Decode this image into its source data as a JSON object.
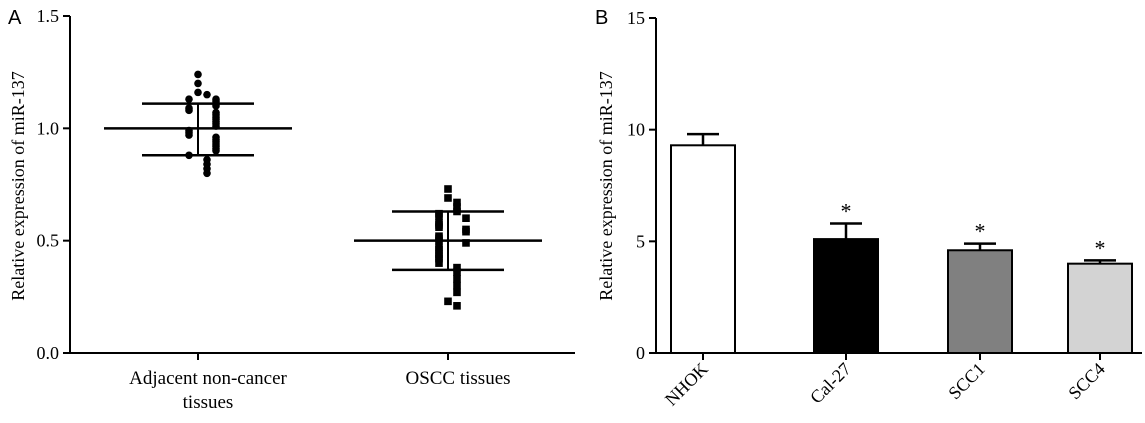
{
  "chart_data": [
    {
      "panel": "A",
      "type": "scatter",
      "ylabel": "Relative expression of miR-137",
      "ylim": [
        0,
        1.5
      ],
      "yticks": [
        "0.0",
        "0.5",
        "1.0",
        "1.5"
      ],
      "categories": [
        {
          "line1": "Adjacent non-cancer",
          "line2": "tissues"
        },
        {
          "line1": "OSCC tissues",
          "line2": ""
        }
      ],
      "groups": [
        {
          "marker": "circle",
          "mean": 1.0,
          "sd_low": 0.88,
          "sd_high": 1.11,
          "points": [
            1.24,
            1.2,
            1.16,
            1.15,
            1.13,
            1.13,
            1.12,
            1.1,
            1.09,
            1.08,
            1.07,
            1.06,
            1.05,
            1.04,
            1.03,
            1.02,
            1.01,
            0.99,
            0.98,
            0.97,
            0.96,
            0.95,
            0.94,
            0.93,
            0.92,
            0.91,
            0.9,
            0.88,
            0.86,
            0.84,
            0.82,
            0.8
          ]
        },
        {
          "marker": "square",
          "mean": 0.5,
          "sd_low": 0.37,
          "sd_high": 0.63,
          "points": [
            0.73,
            0.69,
            0.67,
            0.65,
            0.63,
            0.62,
            0.61,
            0.6,
            0.58,
            0.57,
            0.56,
            0.55,
            0.54,
            0.52,
            0.51,
            0.5,
            0.49,
            0.47,
            0.46,
            0.44,
            0.43,
            0.42,
            0.4,
            0.38,
            0.36,
            0.33,
            0.3,
            0.27,
            0.23,
            0.21
          ]
        }
      ]
    },
    {
      "panel": "B",
      "type": "bar",
      "ylabel": "Relative expression of miR-137",
      "ylim": [
        0,
        15
      ],
      "yticks": [
        "0",
        "5",
        "10",
        "15"
      ],
      "categories": [
        "NHOK",
        "Cal-27",
        "SCC1",
        "SCC4"
      ],
      "values": [
        9.3,
        5.1,
        4.6,
        4.0
      ],
      "errors": [
        0.5,
        0.7,
        0.3,
        0.15
      ],
      "significance": [
        "",
        "*",
        "*",
        "*"
      ],
      "bar_colors": [
        "#ffffff",
        "#000000",
        "#808080",
        "#d3d3d3"
      ]
    }
  ]
}
